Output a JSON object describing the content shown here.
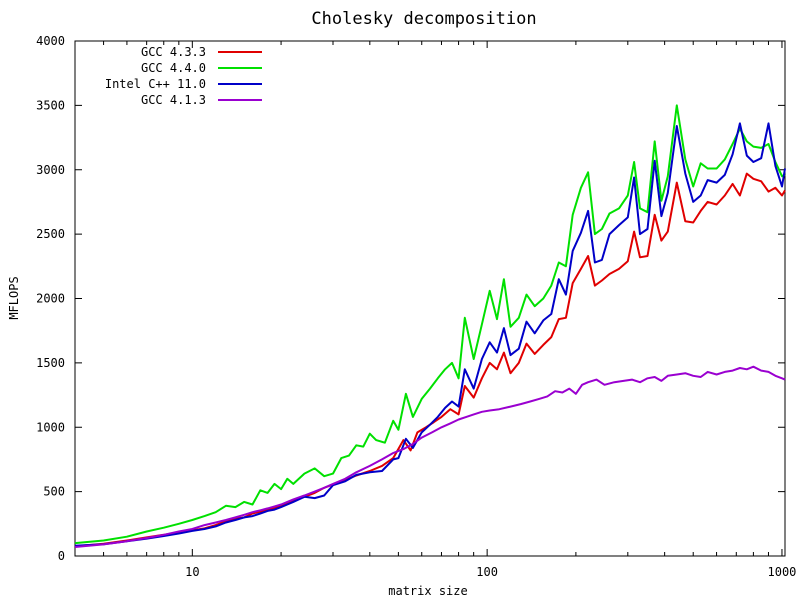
{
  "chart_data": {
    "type": "line",
    "title": "Cholesky decomposition",
    "xlabel": "matrix size",
    "ylabel": "MFLOPS",
    "x_scale": "log",
    "xlim": [
      4,
      1024
    ],
    "ylim": [
      0,
      4000
    ],
    "x_ticks": [
      10,
      100,
      1000
    ],
    "x_tick_labels": [
      "10",
      "100",
      "1000"
    ],
    "y_ticks": [
      0,
      500,
      1000,
      1500,
      2000,
      2500,
      3000,
      3500,
      4000
    ],
    "y_tick_labels": [
      "0",
      "500",
      "1000",
      "1500",
      "2000",
      "2500",
      "3000",
      "3500",
      "4000"
    ],
    "grid": false,
    "legend_position": "top-left",
    "series": [
      {
        "name": "GCC 4.3.3",
        "color": "#e00000",
        "points": [
          [
            4,
            75
          ],
          [
            5,
            95
          ],
          [
            6,
            120
          ],
          [
            7,
            145
          ],
          [
            8,
            165
          ],
          [
            9,
            185
          ],
          [
            10,
            200
          ],
          [
            11,
            215
          ],
          [
            12,
            240
          ],
          [
            13,
            270
          ],
          [
            14,
            290
          ],
          [
            15,
            300
          ],
          [
            16,
            330
          ],
          [
            17,
            345
          ],
          [
            18,
            360
          ],
          [
            19,
            370
          ],
          [
            20,
            395
          ],
          [
            21,
            405
          ],
          [
            22,
            430
          ],
          [
            24,
            460
          ],
          [
            26,
            490
          ],
          [
            28,
            530
          ],
          [
            30,
            555
          ],
          [
            33,
            590
          ],
          [
            36,
            625
          ],
          [
            40,
            660
          ],
          [
            44,
            700
          ],
          [
            48,
            760
          ],
          [
            52,
            900
          ],
          [
            55,
            820
          ],
          [
            58,
            960
          ],
          [
            62,
            1000
          ],
          [
            66,
            1040
          ],
          [
            70,
            1080
          ],
          [
            75,
            1140
          ],
          [
            80,
            1100
          ],
          [
            84,
            1320
          ],
          [
            90,
            1230
          ],
          [
            96,
            1380
          ],
          [
            102,
            1500
          ],
          [
            108,
            1450
          ],
          [
            114,
            1580
          ],
          [
            120,
            1420
          ],
          [
            128,
            1500
          ],
          [
            136,
            1650
          ],
          [
            145,
            1570
          ],
          [
            155,
            1640
          ],
          [
            165,
            1700
          ],
          [
            175,
            1840
          ],
          [
            185,
            1850
          ],
          [
            195,
            2120
          ],
          [
            208,
            2230
          ],
          [
            220,
            2330
          ],
          [
            232,
            2100
          ],
          [
            245,
            2140
          ],
          [
            260,
            2190
          ],
          [
            280,
            2230
          ],
          [
            300,
            2290
          ],
          [
            315,
            2520
          ],
          [
            330,
            2320
          ],
          [
            350,
            2330
          ],
          [
            370,
            2650
          ],
          [
            390,
            2450
          ],
          [
            410,
            2520
          ],
          [
            440,
            2900
          ],
          [
            470,
            2600
          ],
          [
            500,
            2590
          ],
          [
            530,
            2680
          ],
          [
            560,
            2750
          ],
          [
            600,
            2730
          ],
          [
            640,
            2800
          ],
          [
            680,
            2890
          ],
          [
            720,
            2800
          ],
          [
            760,
            2970
          ],
          [
            800,
            2930
          ],
          [
            850,
            2910
          ],
          [
            900,
            2830
          ],
          [
            950,
            2860
          ],
          [
            1000,
            2800
          ],
          [
            1024,
            2840
          ]
        ]
      },
      {
        "name": "GCC 4.4.0",
        "color": "#00e000",
        "points": [
          [
            4,
            100
          ],
          [
            5,
            120
          ],
          [
            6,
            150
          ],
          [
            7,
            190
          ],
          [
            8,
            220
          ],
          [
            9,
            250
          ],
          [
            10,
            280
          ],
          [
            11,
            310
          ],
          [
            12,
            340
          ],
          [
            13,
            390
          ],
          [
            14,
            380
          ],
          [
            15,
            420
          ],
          [
            16,
            400
          ],
          [
            17,
            510
          ],
          [
            18,
            490
          ],
          [
            19,
            560
          ],
          [
            20,
            520
          ],
          [
            21,
            600
          ],
          [
            22,
            560
          ],
          [
            24,
            640
          ],
          [
            26,
            680
          ],
          [
            28,
            620
          ],
          [
            30,
            640
          ],
          [
            32,
            760
          ],
          [
            34,
            780
          ],
          [
            36,
            860
          ],
          [
            38,
            850
          ],
          [
            40,
            950
          ],
          [
            42,
            900
          ],
          [
            45,
            880
          ],
          [
            48,
            1050
          ],
          [
            50,
            980
          ],
          [
            53,
            1260
          ],
          [
            56,
            1080
          ],
          [
            60,
            1220
          ],
          [
            64,
            1300
          ],
          [
            68,
            1380
          ],
          [
            72,
            1450
          ],
          [
            76,
            1500
          ],
          [
            80,
            1380
          ],
          [
            84,
            1850
          ],
          [
            90,
            1530
          ],
          [
            96,
            1800
          ],
          [
            102,
            2060
          ],
          [
            108,
            1840
          ],
          [
            114,
            2150
          ],
          [
            120,
            1780
          ],
          [
            128,
            1850
          ],
          [
            136,
            2030
          ],
          [
            145,
            1940
          ],
          [
            155,
            2000
          ],
          [
            165,
            2100
          ],
          [
            175,
            2280
          ],
          [
            185,
            2250
          ],
          [
            195,
            2650
          ],
          [
            208,
            2860
          ],
          [
            220,
            2980
          ],
          [
            232,
            2500
          ],
          [
            245,
            2540
          ],
          [
            260,
            2660
          ],
          [
            280,
            2700
          ],
          [
            300,
            2800
          ],
          [
            315,
            3060
          ],
          [
            330,
            2700
          ],
          [
            350,
            2670
          ],
          [
            370,
            3220
          ],
          [
            390,
            2760
          ],
          [
            410,
            2950
          ],
          [
            440,
            3500
          ],
          [
            470,
            3080
          ],
          [
            500,
            2870
          ],
          [
            530,
            3050
          ],
          [
            560,
            3010
          ],
          [
            600,
            3010
          ],
          [
            640,
            3080
          ],
          [
            680,
            3200
          ],
          [
            720,
            3320
          ],
          [
            760,
            3220
          ],
          [
            800,
            3180
          ],
          [
            850,
            3170
          ],
          [
            900,
            3200
          ],
          [
            950,
            3060
          ],
          [
            1000,
            2950
          ],
          [
            1024,
            2960
          ]
        ]
      },
      {
        "name": "Intel C++ 11.0",
        "color": "#0000c8",
        "points": [
          [
            4,
            80
          ],
          [
            5,
            92
          ],
          [
            6,
            115
          ],
          [
            7,
            135
          ],
          [
            8,
            155
          ],
          [
            9,
            175
          ],
          [
            10,
            195
          ],
          [
            11,
            210
          ],
          [
            12,
            230
          ],
          [
            13,
            260
          ],
          [
            14,
            280
          ],
          [
            15,
            300
          ],
          [
            16,
            310
          ],
          [
            17,
            330
          ],
          [
            18,
            350
          ],
          [
            19,
            360
          ],
          [
            20,
            380
          ],
          [
            21,
            400
          ],
          [
            22,
            420
          ],
          [
            24,
            460
          ],
          [
            26,
            450
          ],
          [
            28,
            470
          ],
          [
            30,
            550
          ],
          [
            33,
            580
          ],
          [
            36,
            630
          ],
          [
            40,
            650
          ],
          [
            44,
            660
          ],
          [
            48,
            750
          ],
          [
            50,
            760
          ],
          [
            53,
            910
          ],
          [
            56,
            840
          ],
          [
            60,
            960
          ],
          [
            64,
            1020
          ],
          [
            68,
            1080
          ],
          [
            72,
            1150
          ],
          [
            76,
            1200
          ],
          [
            80,
            1160
          ],
          [
            84,
            1450
          ],
          [
            90,
            1300
          ],
          [
            96,
            1530
          ],
          [
            102,
            1660
          ],
          [
            108,
            1580
          ],
          [
            114,
            1770
          ],
          [
            120,
            1560
          ],
          [
            128,
            1610
          ],
          [
            136,
            1820
          ],
          [
            145,
            1730
          ],
          [
            155,
            1830
          ],
          [
            165,
            1880
          ],
          [
            175,
            2150
          ],
          [
            185,
            2030
          ],
          [
            195,
            2370
          ],
          [
            208,
            2510
          ],
          [
            220,
            2680
          ],
          [
            232,
            2280
          ],
          [
            245,
            2300
          ],
          [
            260,
            2500
          ],
          [
            280,
            2570
          ],
          [
            300,
            2630
          ],
          [
            315,
            2940
          ],
          [
            330,
            2500
          ],
          [
            350,
            2540
          ],
          [
            370,
            3070
          ],
          [
            390,
            2640
          ],
          [
            410,
            2820
          ],
          [
            440,
            3340
          ],
          [
            470,
            2970
          ],
          [
            500,
            2750
          ],
          [
            530,
            2800
          ],
          [
            560,
            2920
          ],
          [
            600,
            2900
          ],
          [
            640,
            2960
          ],
          [
            680,
            3120
          ],
          [
            720,
            3360
          ],
          [
            760,
            3110
          ],
          [
            800,
            3060
          ],
          [
            850,
            3090
          ],
          [
            900,
            3360
          ],
          [
            950,
            3030
          ],
          [
            1000,
            2870
          ],
          [
            1024,
            3010
          ]
        ]
      },
      {
        "name": "GCC 4.1.3",
        "color": "#9a00d0",
        "points": [
          [
            4,
            70
          ],
          [
            5,
            90
          ],
          [
            6,
            115
          ],
          [
            7,
            140
          ],
          [
            8,
            165
          ],
          [
            9,
            190
          ],
          [
            10,
            210
          ],
          [
            11,
            240
          ],
          [
            12,
            260
          ],
          [
            13,
            280
          ],
          [
            14,
            300
          ],
          [
            15,
            320
          ],
          [
            16,
            340
          ],
          [
            17,
            355
          ],
          [
            18,
            370
          ],
          [
            19,
            385
          ],
          [
            20,
            400
          ],
          [
            21,
            420
          ],
          [
            22,
            440
          ],
          [
            24,
            470
          ],
          [
            26,
            500
          ],
          [
            28,
            530
          ],
          [
            30,
            560
          ],
          [
            33,
            600
          ],
          [
            36,
            650
          ],
          [
            40,
            700
          ],
          [
            44,
            750
          ],
          [
            48,
            800
          ],
          [
            52,
            830
          ],
          [
            56,
            870
          ],
          [
            60,
            920
          ],
          [
            65,
            960
          ],
          [
            70,
            1000
          ],
          [
            75,
            1030
          ],
          [
            80,
            1060
          ],
          [
            85,
            1080
          ],
          [
            90,
            1100
          ],
          [
            96,
            1120
          ],
          [
            102,
            1130
          ],
          [
            110,
            1140
          ],
          [
            120,
            1160
          ],
          [
            130,
            1180
          ],
          [
            140,
            1200
          ],
          [
            150,
            1220
          ],
          [
            160,
            1240
          ],
          [
            170,
            1280
          ],
          [
            180,
            1270
          ],
          [
            190,
            1300
          ],
          [
            200,
            1260
          ],
          [
            210,
            1330
          ],
          [
            220,
            1350
          ],
          [
            235,
            1370
          ],
          [
            250,
            1330
          ],
          [
            270,
            1350
          ],
          [
            290,
            1360
          ],
          [
            310,
            1370
          ],
          [
            330,
            1350
          ],
          [
            350,
            1380
          ],
          [
            370,
            1390
          ],
          [
            390,
            1360
          ],
          [
            410,
            1400
          ],
          [
            440,
            1410
          ],
          [
            470,
            1420
          ],
          [
            500,
            1400
          ],
          [
            530,
            1390
          ],
          [
            560,
            1430
          ],
          [
            600,
            1410
          ],
          [
            640,
            1430
          ],
          [
            680,
            1440
          ],
          [
            720,
            1460
          ],
          [
            760,
            1450
          ],
          [
            800,
            1470
          ],
          [
            850,
            1440
          ],
          [
            900,
            1430
          ],
          [
            950,
            1400
          ],
          [
            1000,
            1380
          ],
          [
            1024,
            1370
          ]
        ]
      }
    ]
  }
}
